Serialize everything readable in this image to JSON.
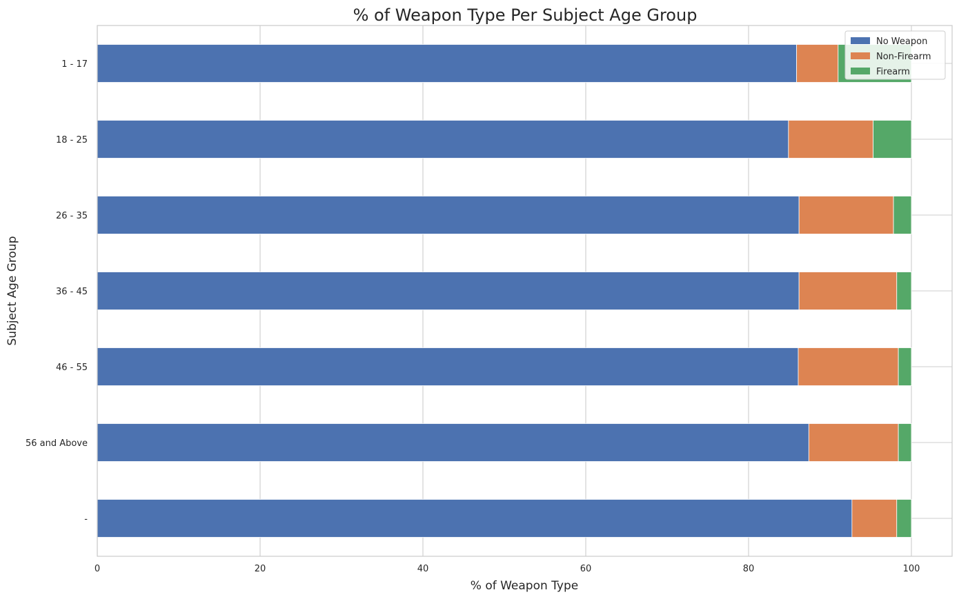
{
  "chart_data": {
    "type": "bar",
    "orientation": "horizontal",
    "stacked": true,
    "title": "% of Weapon Type Per Subject Age Group",
    "xlabel": "% of Weapon Type",
    "ylabel": "Subject Age Group",
    "xlim": [
      0,
      105
    ],
    "xticks": [
      0,
      20,
      40,
      60,
      80,
      100
    ],
    "grid": true,
    "legend_position": "top-right",
    "categories": [
      "1 - 17",
      "18 - 25",
      "26 - 35",
      "36 - 45",
      "46 - 55",
      "56 and Above",
      "-"
    ],
    "series": [
      {
        "name": "No Weapon",
        "color": "#4c72b0",
        "values": [
          85.9,
          84.9,
          86.2,
          86.2,
          86.1,
          87.4,
          92.7
        ]
      },
      {
        "name": "Non-Firearm",
        "color": "#dd8452",
        "values": [
          5.1,
          10.4,
          11.6,
          12.0,
          12.3,
          11.0,
          5.5
        ]
      },
      {
        "name": "Firearm",
        "color": "#55a868",
        "values": [
          9.0,
          4.7,
          2.2,
          1.8,
          1.6,
          1.6,
          1.8
        ]
      }
    ]
  }
}
